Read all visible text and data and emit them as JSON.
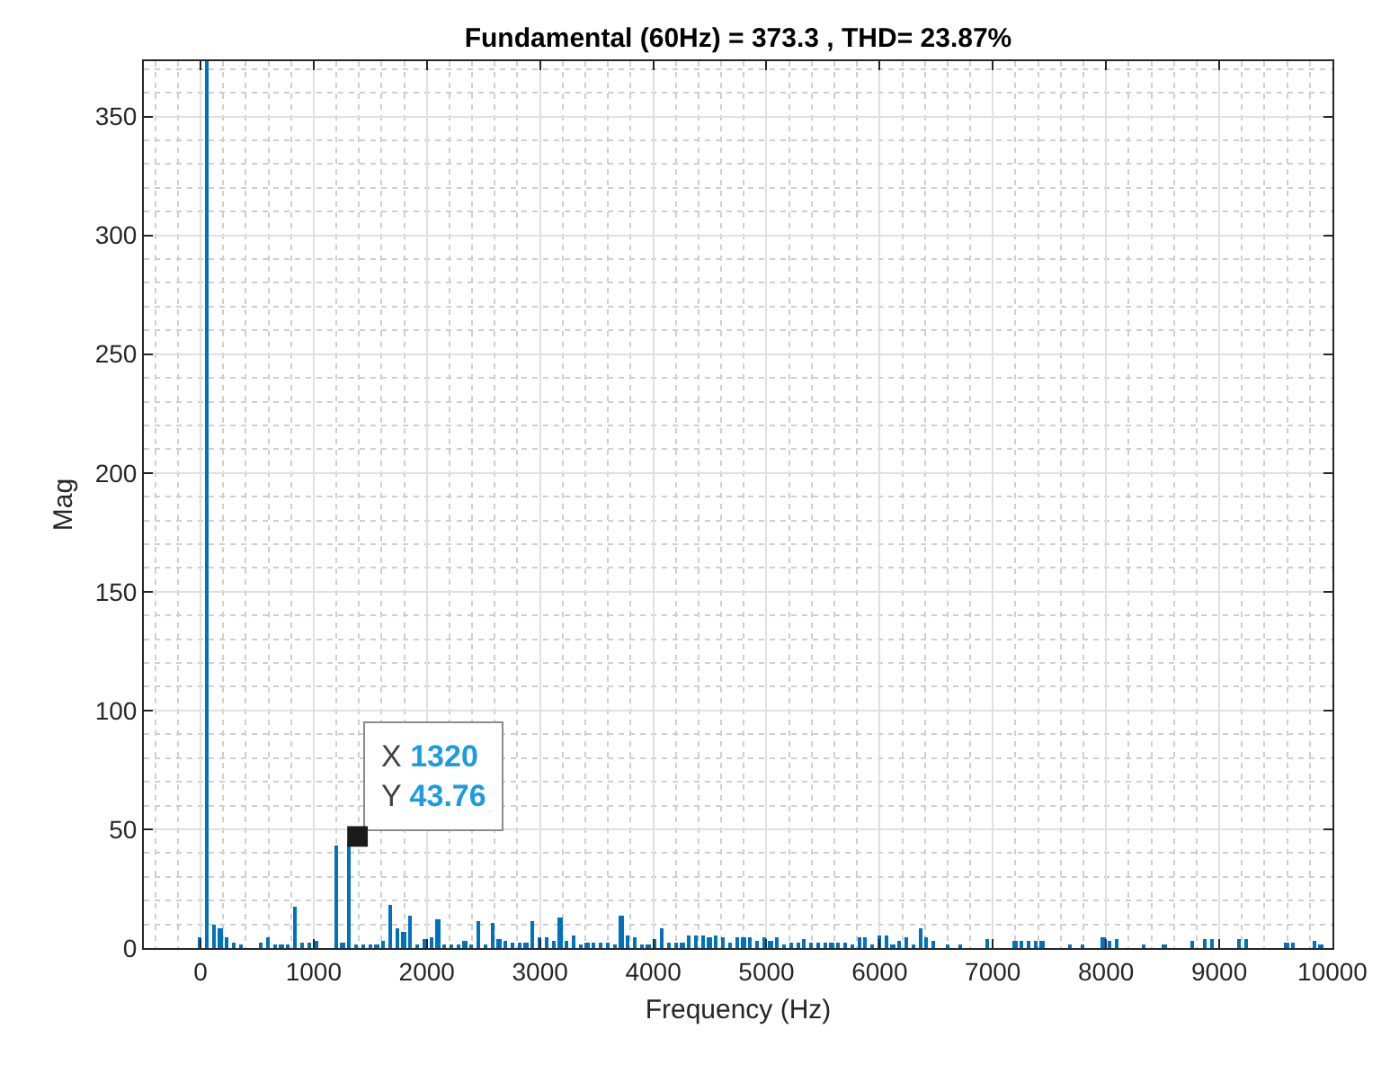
{
  "chart_data": {
    "type": "bar",
    "title": "Fundamental (60Hz) = 373.3 , THD= 23.87%",
    "xlabel": "Frequency (Hz)",
    "ylabel": "Mag",
    "x": [
      0,
      60,
      120,
      180,
      240,
      300,
      360,
      540,
      600,
      660,
      720,
      780,
      840,
      900,
      960,
      1020,
      1200,
      1260,
      1320,
      1380,
      1440,
      1500,
      1560,
      1620,
      1680,
      1740,
      1800,
      1860,
      1920,
      1980,
      2040,
      2100,
      2160,
      2220,
      2280,
      2340,
      2400,
      2460,
      2520,
      2580,
      2640,
      2700,
      2760,
      2820,
      2880,
      2940,
      3000,
      3060,
      3120,
      3180,
      3240,
      3300,
      3360,
      3420,
      3480,
      3540,
      3600,
      3660,
      3720,
      3780,
      3840,
      3900,
      3960,
      4020,
      4080,
      4140,
      4200,
      4260,
      4320,
      4380,
      4440,
      4500,
      4560,
      4620,
      4680,
      4740,
      4800,
      4860,
      4920,
      4980,
      5040,
      5100,
      5160,
      5220,
      5280,
      5340,
      5400,
      5460,
      5520,
      5580,
      5640,
      5700,
      5760,
      5820,
      5880,
      5940,
      6000,
      6060,
      6120,
      6180,
      6240,
      6300,
      6360,
      6420,
      6480,
      6600,
      6720,
      6960,
      7200,
      7260,
      7320,
      7380,
      7440,
      7680,
      7800,
      7980,
      8040,
      8100,
      8340,
      8520,
      8760,
      8880,
      8940,
      9180,
      9240,
      9600,
      9660,
      9840,
      9900
    ],
    "values": [
      4.8,
      373.3,
      9.5,
      8.7,
      4.4,
      2.6,
      1,
      2.6,
      4.9,
      1.5,
      1.5,
      1.5,
      17.2,
      2,
      2,
      3.3,
      42.8,
      2,
      43.76,
      1,
      1,
      1,
      1.5,
      2.8,
      18.5,
      8.2,
      6.9,
      13.8,
      1,
      3.6,
      4.4,
      12,
      1,
      1,
      1,
      2.8,
      1,
      11.5,
      1,
      10.8,
      4.1,
      3,
      2,
      2,
      2,
      11.5,
      4.4,
      4.4,
      3,
      12.8,
      3,
      5.6,
      1.5,
      2,
      2,
      2,
      2,
      1.5,
      13.3,
      5.6,
      4.9,
      1,
      1.5,
      3.6,
      8.2,
      2.6,
      2.6,
      2.6,
      5,
      5,
      5.6,
      4.3,
      5.1,
      4.3,
      2,
      4.3,
      4.3,
      4.3,
      3,
      4.3,
      3,
      4.3,
      1.5,
      2.5,
      2.5,
      3.5,
      2.3,
      2.3,
      2.3,
      2.3,
      2.3,
      2.3,
      1.5,
      4.3,
      4.3,
      1.5,
      5.6,
      5.6,
      1.5,
      3,
      4.3,
      1.5,
      8.7,
      4.3,
      3,
      1.3,
      1.3,
      3.5,
      3,
      3,
      3,
      3,
      3,
      1.5,
      1.5,
      4.8,
      3,
      3.5,
      1.8,
      1.3,
      3,
      3.8,
      3.8,
      4,
      4,
      2,
      2,
      3,
      1.5
    ],
    "color": "#0072bd",
    "xlim": [
      -500,
      10000
    ],
    "xticks": [
      0,
      1000,
      2000,
      3000,
      4000,
      5000,
      6000,
      7000,
      8000,
      9000,
      10000
    ],
    "ylim": [
      0,
      373.3
    ],
    "yticks": [
      0,
      50,
      100,
      150,
      200,
      250,
      300,
      350
    ],
    "grid": true,
    "annotations": [
      {
        "text": "X 1320\nY 43.76",
        "x": 1320,
        "y": 43.76
      }
    ]
  }
}
